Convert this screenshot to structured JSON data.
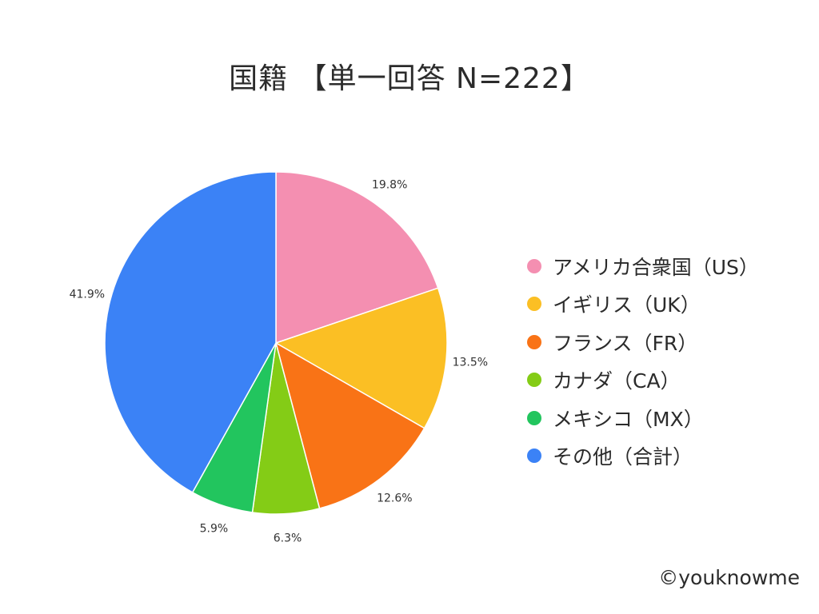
{
  "title": "国籍 【単一回答 N=222】",
  "copyright": "©youknowme",
  "chart_data": {
    "type": "pie",
    "title": "国籍 【単一回答 N=222】",
    "start_angle": "12 o'clock, clockwise",
    "legend_position": "right",
    "slices": [
      {
        "label": "アメリカ合衆国（US）",
        "value": 19.8,
        "value_label": "19.8%",
        "color": "#f48fb1"
      },
      {
        "label": "イギリス（UK）",
        "value": 13.5,
        "value_label": "13.5%",
        "color": "#fbbf24"
      },
      {
        "label": "フランス（FR）",
        "value": 12.6,
        "value_label": "12.6%",
        "color": "#f97316"
      },
      {
        "label": "カナダ（CA）",
        "value": 6.3,
        "value_label": "6.3%",
        "color": "#84cc16"
      },
      {
        "label": "メキシコ（MX）",
        "value": 5.9,
        "value_label": "5.9%",
        "color": "#22c55e"
      },
      {
        "label": "その他（合計）",
        "value": 41.9,
        "value_label": "41.9%",
        "color": "#3b82f6"
      }
    ]
  }
}
